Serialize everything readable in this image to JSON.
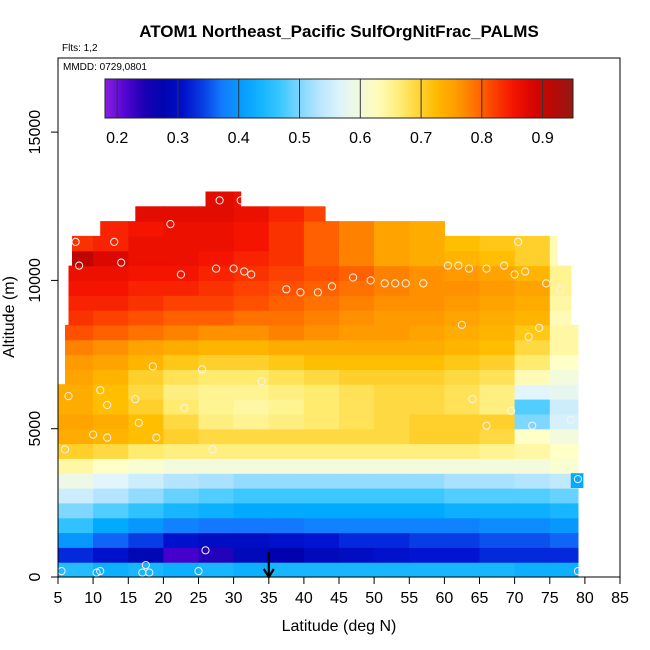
{
  "chart_data": {
    "type": "heatmap",
    "title": "ATOM1 Northeast_Pacific SulfOrgNitFrac_PALMS",
    "subtitle": "Flts: 1,2",
    "annotation": "MMDD: 0729,0801",
    "xlabel": "Latitude (deg N)",
    "ylabel": "Altitude (m)",
    "xlim": [
      5,
      85
    ],
    "ylim": [
      0,
      17500
    ],
    "x_ticks": [
      5,
      10,
      15,
      20,
      25,
      30,
      35,
      40,
      45,
      50,
      55,
      60,
      65,
      70,
      75,
      80,
      85
    ],
    "y_ticks": [
      0,
      5000,
      10000,
      15000
    ],
    "colorbar": {
      "range": [
        0.18,
        0.95
      ],
      "ticks": [
        0.2,
        0.3,
        0.4,
        0.5,
        0.6,
        0.7,
        0.8,
        0.9
      ],
      "placement": "top"
    },
    "marker": {
      "type": "arrow-down",
      "x": 35
    },
    "grid": false,
    "field": {
      "x_edges": [
        5,
        10,
        15,
        20,
        25,
        30,
        35,
        40,
        45,
        50,
        55,
        60,
        65,
        70,
        75,
        79
      ],
      "alt_edges": [
        0,
        500,
        1000,
        1500,
        2000,
        2500,
        3000,
        3500,
        4000,
        4500,
        5000,
        5500,
        6000,
        6500,
        7000,
        7500,
        8000,
        8500,
        9000,
        9500,
        10000,
        10500,
        11000,
        11500,
        12000,
        12500,
        13000
      ],
      "extent": [
        {
          "x": [
            5,
            79
          ],
          "alt": [
            0,
            6500
          ]
        },
        {
          "x": [
            6,
            79
          ],
          "alt": [
            6500,
            8500
          ]
        },
        {
          "x": [
            6.5,
            78
          ],
          "alt": [
            8500,
            10500
          ]
        },
        {
          "x": [
            7,
            76
          ],
          "alt": [
            10500,
            11500
          ]
        },
        {
          "x": [
            11,
            60
          ],
          "alt": [
            11500,
            12000
          ]
        },
        {
          "x": [
            16,
            43
          ],
          "alt": [
            12000,
            12500
          ]
        },
        {
          "x": [
            26,
            31
          ],
          "alt": [
            12500,
            13000
          ]
        },
        {
          "x": [
            78,
            79.8
          ],
          "alt": [
            3000,
            3500
          ]
        }
      ],
      "values": [
        [
          0.45,
          0.43,
          0.44,
          0.43,
          0.44,
          0.43,
          0.44,
          0.44,
          0.44,
          0.44,
          0.44,
          0.44,
          0.44,
          0.43,
          0.43
        ],
        [
          0.33,
          0.31,
          0.28,
          0.22,
          0.24,
          0.29,
          0.27,
          0.29,
          0.3,
          0.31,
          0.32,
          0.32,
          0.33,
          0.33,
          0.33
        ],
        [
          0.4,
          0.36,
          0.34,
          0.31,
          0.3,
          0.3,
          0.31,
          0.32,
          0.33,
          0.33,
          0.34,
          0.34,
          0.35,
          0.35,
          0.36
        ],
        [
          0.46,
          0.42,
          0.4,
          0.38,
          0.37,
          0.37,
          0.37,
          0.38,
          0.38,
          0.38,
          0.38,
          0.38,
          0.39,
          0.39,
          0.4
        ],
        [
          0.5,
          0.48,
          0.46,
          0.44,
          0.43,
          0.42,
          0.42,
          0.42,
          0.42,
          0.42,
          0.42,
          0.43,
          0.43,
          0.43,
          0.44
        ],
        [
          0.55,
          0.53,
          0.51,
          0.49,
          0.48,
          0.47,
          0.47,
          0.47,
          0.47,
          0.47,
          0.47,
          0.48,
          0.48,
          0.48,
          0.49
        ],
        [
          0.59,
          0.57,
          0.55,
          0.53,
          0.52,
          0.51,
          0.51,
          0.51,
          0.51,
          0.51,
          0.51,
          0.52,
          0.52,
          0.53,
          0.54
        ],
        [
          0.64,
          0.62,
          0.61,
          0.6,
          0.6,
          0.6,
          0.6,
          0.6,
          0.6,
          0.6,
          0.6,
          0.6,
          0.6,
          0.6,
          0.61
        ],
        [
          0.7,
          0.69,
          0.67,
          0.66,
          0.66,
          0.66,
          0.66,
          0.66,
          0.66,
          0.66,
          0.66,
          0.66,
          0.65,
          0.64,
          0.62
        ],
        [
          0.74,
          0.73,
          0.72,
          0.7,
          0.69,
          0.69,
          0.69,
          0.69,
          0.69,
          0.69,
          0.7,
          0.7,
          0.69,
          0.62,
          0.6
        ],
        [
          0.75,
          0.74,
          0.72,
          0.69,
          0.66,
          0.65,
          0.66,
          0.67,
          0.68,
          0.69,
          0.7,
          0.7,
          0.7,
          0.5,
          0.56
        ],
        [
          0.74,
          0.72,
          0.7,
          0.67,
          0.65,
          0.64,
          0.65,
          0.67,
          0.68,
          0.69,
          0.69,
          0.68,
          0.66,
          0.48,
          0.55
        ],
        [
          0.74,
          0.72,
          0.69,
          0.66,
          0.65,
          0.65,
          0.66,
          0.67,
          0.68,
          0.69,
          0.69,
          0.68,
          0.66,
          0.57,
          0.58
        ],
        [
          0.75,
          0.73,
          0.7,
          0.68,
          0.67,
          0.67,
          0.68,
          0.69,
          0.7,
          0.7,
          0.7,
          0.69,
          0.68,
          0.63,
          0.6
        ],
        [
          0.76,
          0.75,
          0.73,
          0.71,
          0.7,
          0.7,
          0.71,
          0.72,
          0.72,
          0.72,
          0.72,
          0.71,
          0.7,
          0.67,
          0.62
        ],
        [
          0.78,
          0.77,
          0.75,
          0.74,
          0.73,
          0.73,
          0.74,
          0.74,
          0.74,
          0.74,
          0.74,
          0.73,
          0.72,
          0.69,
          0.64
        ],
        [
          0.81,
          0.8,
          0.79,
          0.78,
          0.77,
          0.77,
          0.78,
          0.77,
          0.76,
          0.76,
          0.75,
          0.74,
          0.73,
          0.71,
          0.64
        ],
        [
          0.83,
          0.82,
          0.81,
          0.8,
          0.8,
          0.79,
          0.79,
          0.78,
          0.77,
          0.76,
          0.76,
          0.75,
          0.74,
          0.73,
          0.63
        ],
        [
          0.84,
          0.84,
          0.83,
          0.82,
          0.82,
          0.81,
          0.8,
          0.79,
          0.78,
          0.77,
          0.77,
          0.76,
          0.75,
          0.74,
          0.64
        ],
        [
          0.85,
          0.85,
          0.84,
          0.84,
          0.83,
          0.82,
          0.81,
          0.8,
          0.79,
          0.78,
          0.77,
          0.77,
          0.76,
          0.75,
          0.65
        ],
        [
          0.86,
          0.86,
          0.85,
          0.85,
          0.84,
          0.83,
          0.82,
          0.81,
          0.8,
          0.78,
          0.77,
          0.76,
          0.75,
          0.73,
          0.65
        ],
        [
          0.91,
          0.88,
          0.86,
          0.86,
          0.85,
          0.84,
          0.83,
          0.8,
          0.78,
          0.75,
          0.74,
          0.73,
          0.72,
          0.7,
          0.63
        ],
        [
          0.83,
          0.84,
          0.86,
          0.86,
          0.86,
          0.85,
          0.83,
          0.8,
          0.78,
          0.75,
          0.74,
          0.72,
          0.71,
          0.7,
          0.63
        ],
        [
          0.84,
          0.84,
          0.85,
          0.86,
          0.86,
          0.85,
          0.83,
          0.8,
          0.78,
          0.75,
          0.74,
          0.72,
          0.71,
          0.7,
          0.63
        ],
        [
          0.86,
          0.86,
          0.87,
          0.87,
          0.87,
          0.86,
          0.84,
          0.82,
          0.8,
          0.78,
          0.76,
          0.74,
          0.72,
          0.7,
          0.65
        ],
        [
          0.86,
          0.86,
          0.87,
          0.87,
          0.87,
          0.86,
          0.85,
          0.83,
          0.8,
          0.78,
          0.76,
          0.74,
          0.72,
          0.7,
          0.65
        ]
      ],
      "small_box_value": 0.42
    },
    "points": [
      [
        5.5,
        200
      ],
      [
        10.5,
        150
      ],
      [
        11,
        200
      ],
      [
        17.5,
        400
      ],
      [
        17,
        150
      ],
      [
        18,
        150
      ],
      [
        25,
        200
      ],
      [
        26,
        900
      ],
      [
        79,
        200
      ],
      [
        6,
        4300
      ],
      [
        10,
        4800
      ],
      [
        12,
        4700
      ],
      [
        16.5,
        5200
      ],
      [
        19,
        4700
      ],
      [
        12,
        5800
      ],
      [
        16,
        6000
      ],
      [
        23,
        5700
      ],
      [
        27,
        4300
      ],
      [
        11,
        6300
      ],
      [
        18.5,
        7100
      ],
      [
        25.5,
        7000
      ],
      [
        34,
        6600
      ],
      [
        66,
        5100
      ],
      [
        64,
        6000
      ],
      [
        69.5,
        5600
      ],
      [
        72.5,
        5100
      ],
      [
        78,
        5300
      ],
      [
        79,
        3300
      ],
      [
        6.5,
        6100
      ],
      [
        62.5,
        8500
      ],
      [
        72,
        8100
      ],
      [
        73.5,
        8400
      ],
      [
        74.5,
        9900
      ],
      [
        76.5,
        9700
      ],
      [
        8,
        10500
      ],
      [
        14,
        10600
      ],
      [
        13,
        11300
      ],
      [
        22.5,
        10200
      ],
      [
        27.5,
        10400
      ],
      [
        30,
        10400
      ],
      [
        31.5,
        10300
      ],
      [
        32.5,
        10200
      ],
      [
        37.5,
        9700
      ],
      [
        39.5,
        9600
      ],
      [
        42,
        9600
      ],
      [
        44,
        9800
      ],
      [
        47,
        10100
      ],
      [
        49.5,
        10000
      ],
      [
        51.5,
        9900
      ],
      [
        53,
        9900
      ],
      [
        54.5,
        9900
      ],
      [
        57,
        9900
      ],
      [
        60.5,
        10500
      ],
      [
        62,
        10500
      ],
      [
        63.5,
        10400
      ],
      [
        66,
        10400
      ],
      [
        68.5,
        10500
      ],
      [
        70,
        10200
      ],
      [
        71.5,
        10300
      ],
      [
        7.5,
        11300
      ],
      [
        21,
        11900
      ],
      [
        28,
        12700
      ],
      [
        31,
        12700
      ],
      [
        70.5,
        11300
      ]
    ]
  }
}
